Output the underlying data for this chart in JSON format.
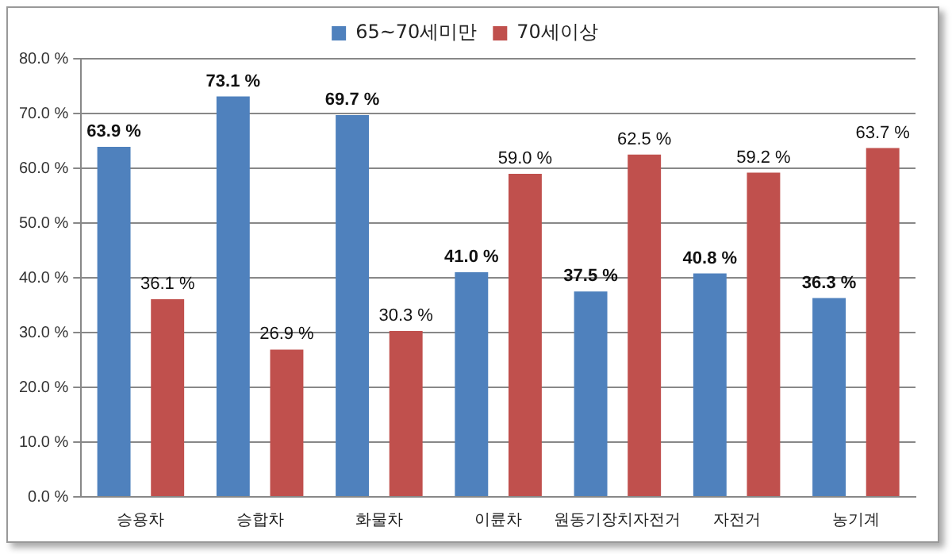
{
  "chart_data": {
    "type": "bar",
    "categories": [
      "승용차",
      "승합차",
      "화물차",
      "이륜차",
      "원동기장치자전거",
      "자전거",
      "농기계"
    ],
    "series": [
      {
        "name": "65~70세미만",
        "color": "#4f81bd",
        "values": [
          63.9,
          73.1,
          69.7,
          41.0,
          37.5,
          40.8,
          36.3
        ],
        "value_labels": [
          "63.9 %",
          "73.1 %",
          "69.7 %",
          "41.0 %",
          "37.5 %",
          "40.8 %",
          "36.3 %"
        ]
      },
      {
        "name": "70세이상",
        "color": "#c0504d",
        "values": [
          36.1,
          26.9,
          30.3,
          59.0,
          62.5,
          59.2,
          63.7
        ],
        "value_labels": [
          "36.1 %",
          "26.9 %",
          "30.3 %",
          "59.0 %",
          "62.5 %",
          "59.2 %",
          "63.7 %"
        ]
      }
    ],
    "ylim": [
      0,
      80
    ],
    "yticks": [
      {
        "value": 0,
        "label": "0.0 %"
      },
      {
        "value": 10,
        "label": "10.0 %"
      },
      {
        "value": 20,
        "label": "20.0 %"
      },
      {
        "value": 30,
        "label": "30.0 %"
      },
      {
        "value": 40,
        "label": "40.0 %"
      },
      {
        "value": 50,
        "label": "50.0 %"
      },
      {
        "value": 60,
        "label": "60.0 %"
      },
      {
        "value": 70,
        "label": "70.0 %"
      },
      {
        "value": 80,
        "label": "80.0 %"
      }
    ],
    "grid": "y",
    "legend": "top"
  }
}
